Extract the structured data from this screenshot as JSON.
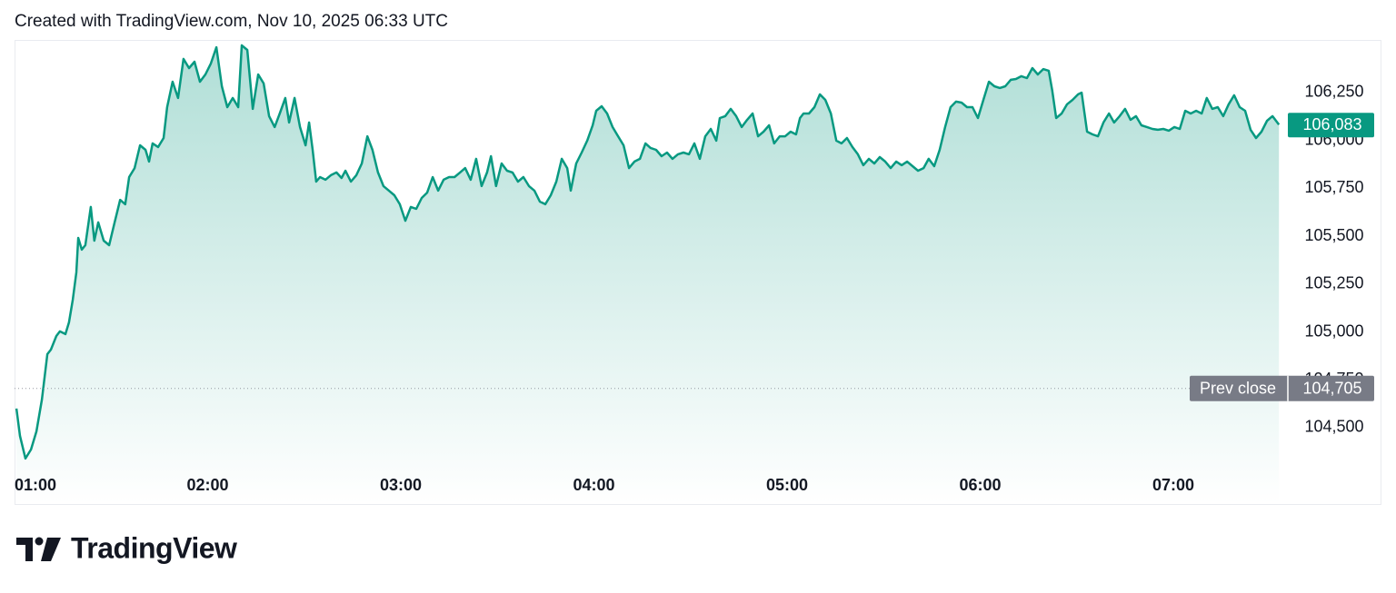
{
  "header": "Created with TradingView.com, Nov 10, 2025 06:33 UTC",
  "footer": {
    "brand": "TradingView"
  },
  "chart_data": {
    "type": "area",
    "x": [
      60.6,
      61.7,
      63.4,
      65.1,
      66.8,
      68.5,
      70.2,
      71.3,
      73.0,
      74.1,
      75.8,
      76.9,
      78.1,
      79.2,
      79.8,
      80.9,
      82.0,
      83.7,
      84.8,
      86.0,
      87.7,
      89.4,
      91.1,
      92.8,
      94.4,
      95.6,
      97.3,
      99.0,
      100.7,
      101.8,
      102.9,
      104.6,
      106.3,
      107.4,
      109.1,
      110.8,
      112.5,
      114.2,
      115.9,
      117.6,
      119.3,
      121.0,
      122.7,
      124.4,
      126.1,
      127.8,
      129.5,
      130.6,
      132.3,
      134.0,
      135.7,
      137.4,
      139.1,
      140.8,
      142.4,
      144.1,
      145.3,
      147.0,
      148.7,
      150.4,
      151.5,
      152.6,
      153.7,
      154.9,
      156.6,
      158.3,
      160.0,
      161.6,
      162.8,
      164.5,
      166.2,
      167.9,
      169.6,
      171.2,
      172.9,
      174.6,
      176.3,
      178.0,
      179.7,
      181.4,
      183.1,
      184.8,
      186.5,
      188.2,
      189.9,
      191.6,
      193.3,
      195.0,
      196.7,
      198.4,
      200.0,
      201.7,
      203.4,
      205.1,
      206.8,
      208.0,
      209.6,
      211.3,
      213.0,
      214.7,
      216.4,
      218.1,
      219.8,
      221.5,
      223.2,
      224.9,
      226.6,
      228.3,
      230.0,
      231.7,
      232.8,
      234.5,
      236.2,
      237.9,
      239.6,
      240.7,
      242.4,
      244.1,
      245.8,
      247.5,
      249.2,
      250.9,
      252.6,
      254.3,
      256.0,
      257.6,
      259.3,
      261.0,
      262.7,
      264.4,
      266.1,
      267.8,
      269.5,
      271.2,
      272.9,
      274.6,
      276.3,
      278.0,
      279.1,
      280.8,
      282.5,
      284.2,
      285.9,
      287.6,
      289.3,
      291.0,
      292.7,
      294.4,
      296.0,
      297.7,
      299.4,
      301.1,
      302.8,
      304.0,
      305.1,
      306.8,
      308.5,
      310.2,
      311.9,
      313.6,
      315.3,
      316.9,
      318.6,
      320.3,
      322.0,
      323.7,
      325.4,
      327.1,
      328.8,
      330.5,
      332.2,
      333.9,
      335.6,
      337.3,
      339.0,
      340.7,
      342.4,
      344.0,
      345.7,
      347.4,
      349.1,
      350.8,
      352.5,
      354.2,
      355.9,
      357.6,
      359.3,
      361.0,
      362.7,
      364.4,
      366.1,
      367.8,
      369.5,
      371.1,
      372.8,
      374.5,
      376.2,
      377.9,
      379.6,
      381.3,
      382.4,
      383.6,
      385.3,
      387.0,
      388.7,
      390.4,
      391.5,
      393.2,
      394.9,
      396.6,
      398.3,
      400.0,
      401.6,
      403.3,
      405.0,
      406.7,
      408.4,
      410.1,
      411.8,
      413.5,
      415.2,
      416.9,
      418.6,
      420.3,
      422.0,
      423.7,
      425.4,
      427.1,
      428.8,
      430.4,
      432.1,
      433.8,
      435.5,
      437.2,
      438.9,
      440.6,
      442.3,
      444.0,
      445.7,
      447.4,
      449.1,
      450.8,
      452.8
    ],
    "series": [
      {
        "color": "#089981",
        "values": [
          104600,
          104457,
          104339,
          104386,
          104481,
          104647,
          104884,
          104908,
          104979,
          105003,
          104989,
          105050,
          105169,
          105311,
          105491,
          105430,
          105453,
          105653,
          105477,
          105572,
          105477,
          105453,
          105572,
          105690,
          105667,
          105809,
          105856,
          105975,
          105951,
          105890,
          105985,
          105966,
          106013,
          106174,
          106307,
          106222,
          106426,
          106378,
          106411,
          106307,
          106345,
          106402,
          106487,
          106283,
          106174,
          106222,
          106174,
          106497,
          106473,
          106165,
          106345,
          106298,
          106127,
          106070,
          106141,
          106222,
          106094,
          106222,
          106070,
          105975,
          106094,
          105951,
          105785,
          105809,
          105795,
          105819,
          105833,
          105804,
          105842,
          105785,
          105819,
          105880,
          106022,
          105951,
          105833,
          105762,
          105738,
          105714,
          105667,
          105581,
          105653,
          105643,
          105700,
          105728,
          105809,
          105738,
          105795,
          105809,
          105809,
          105833,
          105856,
          105795,
          105904,
          105762,
          105833,
          105918,
          105762,
          105880,
          105842,
          105833,
          105785,
          105809,
          105762,
          105738,
          105681,
          105667,
          105714,
          105785,
          105904,
          105856,
          105738,
          105880,
          105937,
          105999,
          106079,
          106155,
          106179,
          106141,
          106070,
          106022,
          105975,
          105856,
          105890,
          105904,
          105985,
          105961,
          105951,
          105918,
          105937,
          105904,
          105928,
          105937,
          105928,
          105985,
          105904,
          106022,
          106060,
          105999,
          106117,
          106127,
          106165,
          106127,
          106070,
          106108,
          106141,
          106022,
          106046,
          106079,
          105985,
          106022,
          106022,
          106046,
          106032,
          106117,
          106141,
          106141,
          106174,
          106241,
          106212,
          106141,
          105999,
          105985,
          106013,
          105966,
          105928,
          105871,
          105904,
          105880,
          105913,
          105890,
          105856,
          105890,
          105871,
          105890,
          105866,
          105842,
          105856,
          105904,
          105866,
          105951,
          106070,
          106174,
          106203,
          106198,
          106174,
          106174,
          106117,
          106212,
          106307,
          106283,
          106274,
          106283,
          106317,
          106321,
          106336,
          106326,
          106378,
          106345,
          106373,
          106364,
          106260,
          106117,
          106141,
          106189,
          106212,
          106241,
          106250,
          106046,
          106032,
          106022,
          106094,
          106141,
          106094,
          106127,
          106165,
          106108,
          106127,
          106079,
          106070,
          106060,
          106056,
          106060,
          106051,
          106070,
          106060,
          106155,
          106141,
          106155,
          106141,
          106222,
          106165,
          106174,
          106127,
          106189,
          106236,
          106174,
          106155,
          106056,
          106013,
          106046,
          106103,
          106127,
          106083
        ]
      }
    ],
    "xlim": [
      60,
      453.6
    ],
    "xticks": [
      {
        "value": 60,
        "label": "01:00"
      },
      {
        "value": 120,
        "label": "02:00"
      },
      {
        "value": 180,
        "label": "03:00"
      },
      {
        "value": 240,
        "label": "04:00"
      },
      {
        "value": 300,
        "label": "05:00"
      },
      {
        "value": 360,
        "label": "06:00"
      },
      {
        "value": 420,
        "label": "07:00"
      }
    ],
    "ylim": [
      104315,
      106525
    ],
    "yticks": [
      {
        "value": 104500,
        "label": "104,500"
      },
      {
        "value": 104750,
        "label": "104,750"
      },
      {
        "value": 105000,
        "label": "105,000"
      },
      {
        "value": 105250,
        "label": "105,250"
      },
      {
        "value": 105500,
        "label": "105,500"
      },
      {
        "value": 105750,
        "label": "105,750"
      },
      {
        "value": 106000,
        "label": "106,000"
      },
      {
        "value": 106250,
        "label": "106,250"
      }
    ],
    "last_price": {
      "value": 106083,
      "label": "106,083",
      "color": "#089981"
    },
    "prev_close": {
      "name": "Prev close",
      "value": 104705,
      "label": "104,705",
      "color": "#787b86"
    },
    "grid": false
  }
}
